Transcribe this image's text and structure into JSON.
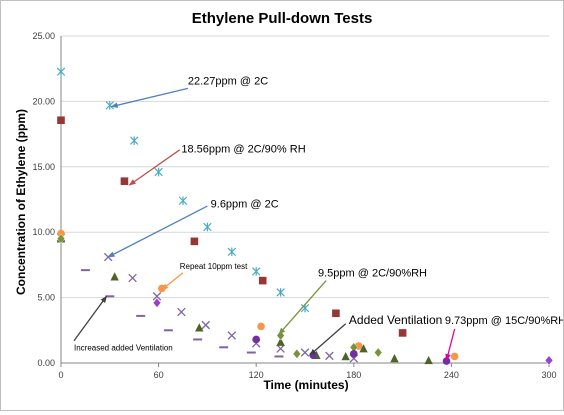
{
  "chart_data": {
    "type": "scatter",
    "title": "Ethylene Pull-down Tests",
    "xlabel": "Time (minutes)",
    "ylabel": "Concentration of Ethylene (ppm)",
    "xlim": [
      0,
      300
    ],
    "ylim": [
      0,
      25
    ],
    "x_ticks": [
      0,
      60,
      120,
      180,
      240,
      300
    ],
    "x_tick_labels": [
      "0",
      "60",
      "120",
      "180",
      "240",
      "300"
    ],
    "y_ticks": [
      0,
      5,
      10,
      15,
      20,
      25
    ],
    "y_tick_labels": [
      "0.00",
      "5.00",
      "10.00",
      "15.00",
      "20.00",
      "25.00"
    ],
    "grid": "horizontal",
    "legend": "none",
    "series": [
      {
        "marker": "asterisk",
        "color": "#4bacc6",
        "points": [
          [
            0,
            22.27
          ],
          [
            30,
            19.7
          ],
          [
            45,
            17.0
          ],
          [
            60,
            14.6
          ],
          [
            75,
            12.4
          ],
          [
            90,
            10.4
          ],
          [
            105,
            8.5
          ],
          [
            120,
            7.0
          ],
          [
            135,
            5.4
          ],
          [
            150,
            4.2
          ]
        ]
      },
      {
        "marker": "square",
        "color": "#953735",
        "points": [
          [
            0,
            18.56
          ],
          [
            39,
            13.9
          ],
          [
            82,
            9.3
          ],
          [
            124,
            6.3
          ],
          [
            169,
            3.8
          ],
          [
            210,
            2.3
          ]
        ]
      },
      {
        "marker": "x",
        "color": "#8064a2",
        "points": [
          [
            0,
            9.6
          ],
          [
            29,
            8.1
          ],
          [
            44,
            6.5
          ],
          [
            59,
            5.1
          ],
          [
            74,
            3.9
          ],
          [
            89,
            2.9
          ],
          [
            105,
            2.1
          ],
          [
            120,
            1.5
          ],
          [
            135,
            1.1
          ],
          [
            150,
            0.8
          ],
          [
            165,
            0.55
          ],
          [
            180,
            0.35
          ]
        ]
      },
      {
        "marker": "circle",
        "color": "#f79646",
        "points": [
          [
            0,
            9.9
          ],
          [
            62,
            5.7
          ],
          [
            123,
            2.8
          ],
          [
            183,
            1.3
          ],
          [
            242,
            0.5
          ]
        ]
      },
      {
        "marker": "triangle",
        "color": "#4f6228",
        "points": [
          [
            0,
            9.5
          ],
          [
            33,
            6.6
          ],
          [
            85,
            2.7
          ],
          [
            135,
            1.6
          ],
          [
            157,
            0.6
          ],
          [
            175,
            0.5
          ],
          [
            186,
            1.1
          ],
          [
            205,
            0.35
          ],
          [
            226,
            0.2
          ]
        ]
      },
      {
        "marker": "diamond",
        "color": "#77933c",
        "points": [
          [
            0,
            9.5
          ],
          [
            135,
            2.1
          ],
          [
            145,
            0.7
          ],
          [
            180,
            1.2
          ],
          [
            195,
            0.8
          ]
        ]
      },
      {
        "marker": "dash",
        "color": "#8064a2",
        "points": [
          [
            15,
            7.1
          ],
          [
            30,
            5.1
          ],
          [
            49,
            3.6
          ],
          [
            66,
            2.5
          ],
          [
            84,
            1.8
          ],
          [
            100,
            1.2
          ],
          [
            117,
            0.8
          ],
          [
            134,
            0.5
          ]
        ]
      },
      {
        "marker": "circle",
        "color": "#7030a0",
        "points": [
          [
            120,
            1.8
          ],
          [
            155,
            0.6
          ],
          [
            180,
            0.7
          ],
          [
            237,
            0.15
          ]
        ]
      },
      {
        "marker": "diamond",
        "color": "#9b3fd0",
        "points": [
          [
            59,
            4.6
          ],
          [
            300,
            0.2
          ]
        ]
      }
    ],
    "annotations": [
      {
        "text": "22.27ppm @ 2C",
        "size": 11,
        "text_at": [
          78,
          21.3
        ],
        "arrow_from": [
          78,
          21.0
        ],
        "arrow_to": [
          31,
          19.6
        ],
        "color": "#4f81bd"
      },
      {
        "text": "18.56ppm @ 2C/90% RH",
        "size": 11,
        "text_at": [
          74,
          16.1
        ],
        "arrow_from": [
          73,
          16.3
        ],
        "arrow_to": [
          42,
          13.6
        ],
        "color": "#c0504d"
      },
      {
        "text": "9.6ppm @ 2C",
        "size": 11,
        "text_at": [
          92,
          11.9
        ],
        "arrow_from": [
          90,
          12.0
        ],
        "arrow_to": [
          29,
          8.1
        ],
        "color": "#4f81bd"
      },
      {
        "text": "Repeat 10ppm test",
        "size": 8,
        "text_at": [
          73,
          7.2
        ],
        "arrow_from": [
          75,
          6.9
        ],
        "arrow_to": [
          62,
          5.6
        ],
        "color": "#f79646"
      },
      {
        "text": "9.5ppm @ 2C/90%RH",
        "size": 11,
        "text_at": [
          158,
          6.6
        ],
        "arrow_from": [
          163,
          6.3
        ],
        "arrow_to": [
          134,
          2.2
        ],
        "color": "#77933c"
      },
      {
        "text": "Added Ventilation",
        "size": 12,
        "text_at": [
          177,
          3.0
        ],
        "arrow_from": [
          175,
          3.0
        ],
        "arrow_to": [
          153,
          0.6
        ],
        "color": "#404040"
      },
      {
        "text": "9.73ppm @ 15C/90%RH",
        "size": 11,
        "text_at": [
          236,
          3.0
        ],
        "arrow_from": [
          242,
          2.6
        ],
        "arrow_to": [
          237,
          0.2
        ],
        "color": "#e000a0"
      },
      {
        "text": "Increased added Ventilation",
        "size": 8,
        "text_at": [
          8,
          0.95
        ],
        "arrow_from": [
          8,
          1.7
        ],
        "arrow_to": [
          28,
          5.1
        ],
        "color": "#404040"
      }
    ]
  }
}
